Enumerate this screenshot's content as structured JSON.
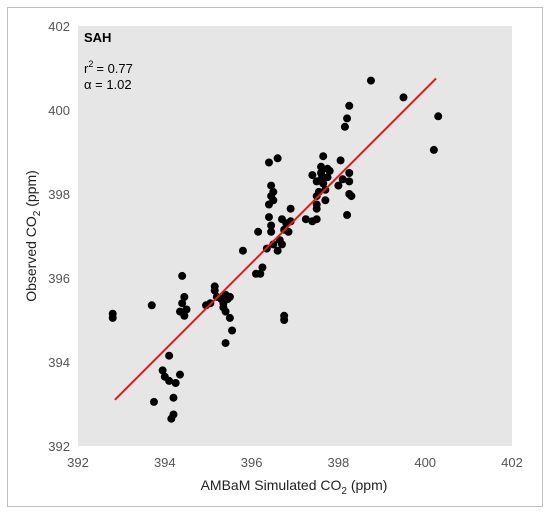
{
  "chart_data": {
    "type": "scatter",
    "site_label": "SAH",
    "stats": {
      "r2_text": "= 0.77",
      "alpha_text": "α = 1.02"
    },
    "xlabel_main": "AMBaM Simulated CO",
    "xlabel_sub": "2",
    "xlabel_unit": " (ppm)",
    "ylabel_main": "Observed  CO",
    "ylabel_sub": "2",
    "ylabel_unit": " (ppm)",
    "xlim": [
      392,
      402
    ],
    "ylim": [
      392,
      402
    ],
    "xticks": [
      392,
      394,
      396,
      398,
      400,
      402
    ],
    "yticks": [
      392,
      394,
      396,
      398,
      400,
      402
    ],
    "grid": false,
    "background_color": "#e6e6e6",
    "point_color": "#000000",
    "fit_line": {
      "x": [
        392.85,
        400.25
      ],
      "y": [
        393.1,
        400.75
      ],
      "color": "#e31a1c"
    },
    "points": [
      [
        392.8,
        395.15
      ],
      [
        392.8,
        395.05
      ],
      [
        393.7,
        395.35
      ],
      [
        393.75,
        393.05
      ],
      [
        393.95,
        393.8
      ],
      [
        394.0,
        393.65
      ],
      [
        394.1,
        394.15
      ],
      [
        394.1,
        393.55
      ],
      [
        394.2,
        393.15
      ],
      [
        394.2,
        392.75
      ],
      [
        394.15,
        392.65
      ],
      [
        394.25,
        393.5
      ],
      [
        394.35,
        393.7
      ],
      [
        394.4,
        396.05
      ],
      [
        394.4,
        395.4
      ],
      [
        394.35,
        395.2
      ],
      [
        394.45,
        395.55
      ],
      [
        394.5,
        395.25
      ],
      [
        394.45,
        395.1
      ],
      [
        394.95,
        395.35
      ],
      [
        395.05,
        395.4
      ],
      [
        395.15,
        395.8
      ],
      [
        395.15,
        395.7
      ],
      [
        395.2,
        395.55
      ],
      [
        395.3,
        395.5
      ],
      [
        395.35,
        395.4
      ],
      [
        395.4,
        395.6
      ],
      [
        395.45,
        395.5
      ],
      [
        395.4,
        395.2
      ],
      [
        395.5,
        395.05
      ],
      [
        395.55,
        394.75
      ],
      [
        395.4,
        394.45
      ],
      [
        395.5,
        395.55
      ],
      [
        395.35,
        395.3
      ],
      [
        395.8,
        396.65
      ],
      [
        396.1,
        396.1
      ],
      [
        396.15,
        397.1
      ],
      [
        396.2,
        396.1
      ],
      [
        396.25,
        396.25
      ],
      [
        396.4,
        398.75
      ],
      [
        396.4,
        397.75
      ],
      [
        396.4,
        397.45
      ],
      [
        396.35,
        396.7
      ],
      [
        396.45,
        398.2
      ],
      [
        396.45,
        397.95
      ],
      [
        396.5,
        398.05
      ],
      [
        396.5,
        397.85
      ],
      [
        396.45,
        397.25
      ],
      [
        396.45,
        397.1
      ],
      [
        396.5,
        396.8
      ],
      [
        396.6,
        398.85
      ],
      [
        396.6,
        396.65
      ],
      [
        396.65,
        396.9
      ],
      [
        396.7,
        397.4
      ],
      [
        396.75,
        397.15
      ],
      [
        396.7,
        396.8
      ],
      [
        396.75,
        395.1
      ],
      [
        396.75,
        395.0
      ],
      [
        396.8,
        397.3
      ],
      [
        396.9,
        397.65
      ],
      [
        396.85,
        397.1
      ],
      [
        396.9,
        397.35
      ],
      [
        397.25,
        397.4
      ],
      [
        397.4,
        397.35
      ],
      [
        397.4,
        398.45
      ],
      [
        397.5,
        398.3
      ],
      [
        397.5,
        397.95
      ],
      [
        397.5,
        397.75
      ],
      [
        397.5,
        397.65
      ],
      [
        397.5,
        397.4
      ],
      [
        397.55,
        398.05
      ],
      [
        397.6,
        398.35
      ],
      [
        397.6,
        398.65
      ],
      [
        397.65,
        398.9
      ],
      [
        397.6,
        398.5
      ],
      [
        397.65,
        398.25
      ],
      [
        397.7,
        397.85
      ],
      [
        397.7,
        398.1
      ],
      [
        397.75,
        398.4
      ],
      [
        397.75,
        398.6
      ],
      [
        397.8,
        398.55
      ],
      [
        398.0,
        398.2
      ],
      [
        398.05,
        398.8
      ],
      [
        398.1,
        398.35
      ],
      [
        398.15,
        399.6
      ],
      [
        398.2,
        399.8
      ],
      [
        398.25,
        400.1
      ],
      [
        398.25,
        398.5
      ],
      [
        398.25,
        398.3
      ],
      [
        398.2,
        397.5
      ],
      [
        398.25,
        398.0
      ],
      [
        398.3,
        397.95
      ],
      [
        398.75,
        400.7
      ],
      [
        399.5,
        400.3
      ],
      [
        400.2,
        399.05
      ],
      [
        400.3,
        399.85
      ]
    ]
  }
}
